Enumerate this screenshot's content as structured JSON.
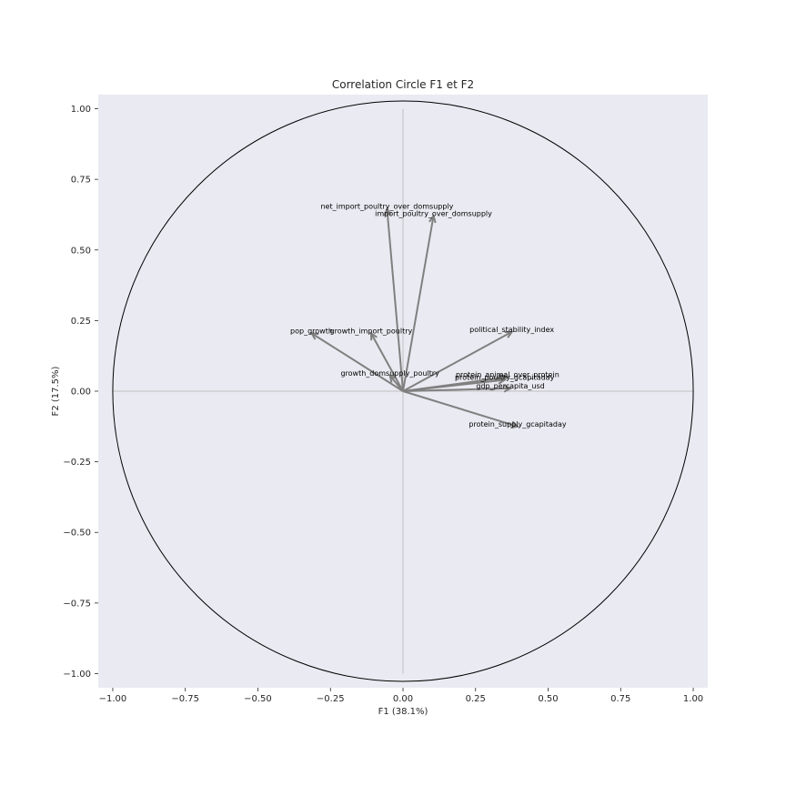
{
  "chart_data": {
    "type": "scatter",
    "title": "Correlation Circle F1 et F2",
    "xlabel": "F1 (38.1%)",
    "ylabel": "F2 (17.5%)",
    "xlim": [
      -1.05,
      1.05
    ],
    "ylim": [
      -1.05,
      1.05
    ],
    "xticks": [
      -1.0,
      -0.75,
      -0.5,
      -0.25,
      0.0,
      0.25,
      0.5,
      0.75,
      1.0
    ],
    "yticks": [
      -1.0,
      -0.75,
      -0.5,
      -0.25,
      0.0,
      0.25,
      0.5,
      0.75,
      1.0
    ],
    "xtick_labels": [
      "−1.00",
      "−0.75",
      "−0.50",
      "−0.25",
      "0.00",
      "0.25",
      "0.50",
      "0.75",
      "1.00"
    ],
    "ytick_labels": [
      "−1.00",
      "−0.75",
      "−0.50",
      "−0.25",
      "0.00",
      "0.25",
      "0.50",
      "0.75",
      "1.00"
    ],
    "grid": false,
    "unit_circle": true,
    "colors": {
      "background": "#eaeaf2",
      "arrow": "#808080",
      "circle": "#000000",
      "axis_lines": "#c0c0c0"
    },
    "variables": [
      {
        "name": "net_import_poultry_over_domsupply",
        "x": -0.055,
        "y": 0.645
      },
      {
        "name": "import_poultry_over_domsupply",
        "x": 0.105,
        "y": 0.62
      },
      {
        "name": "pop_growth",
        "x": -0.315,
        "y": 0.205
      },
      {
        "name": "growth_import_poultry",
        "x": -0.11,
        "y": 0.205
      },
      {
        "name": "growth_domsupply_poultry",
        "x": -0.045,
        "y": 0.055
      },
      {
        "name": "political_stability_index",
        "x": 0.375,
        "y": 0.21
      },
      {
        "name": "protein_supply_gcapitaday",
        "x": 0.395,
        "y": -0.125
      },
      {
        "name": "gdp_percapita_usd",
        "x": 0.37,
        "y": 0.01
      },
      {
        "name": "protein_animal_over_protein",
        "x": 0.36,
        "y": 0.05
      },
      {
        "name": "protein_poultry_gcapitaday",
        "x": 0.35,
        "y": 0.04
      }
    ]
  }
}
